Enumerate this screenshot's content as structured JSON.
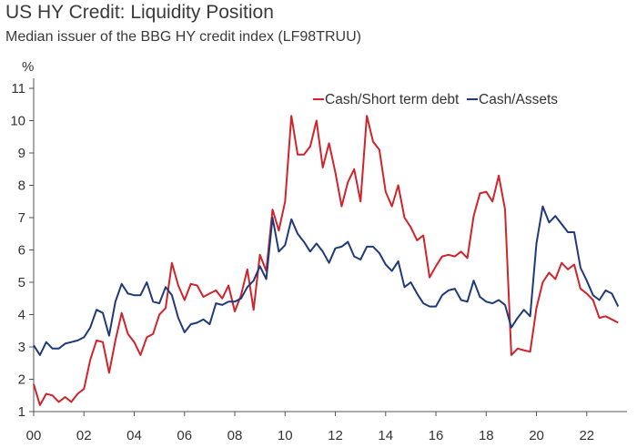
{
  "chart_data": {
    "type": "line",
    "title": "US HY Credit: Liquidity Position",
    "subtitle": "Median issuer of the BBG HY credit index (LF98TRUU)",
    "ylabel": "%",
    "xlabel": "",
    "xlim": [
      2000,
      2023.6
    ],
    "ylim": [
      1,
      11
    ],
    "xticks": [
      {
        "value": 2000,
        "label": "00"
      },
      {
        "value": 2002,
        "label": "02"
      },
      {
        "value": 2004,
        "label": "04"
      },
      {
        "value": 2006,
        "label": "06"
      },
      {
        "value": 2008,
        "label": "08"
      },
      {
        "value": 2010,
        "label": "10"
      },
      {
        "value": 2012,
        "label": "12"
      },
      {
        "value": 2014,
        "label": "14"
      },
      {
        "value": 2016,
        "label": "16"
      },
      {
        "value": 2018,
        "label": "18"
      },
      {
        "value": 2020,
        "label": "20"
      },
      {
        "value": 2022,
        "label": "22"
      }
    ],
    "yticks": [
      {
        "value": 1,
        "label": "1"
      },
      {
        "value": 2,
        "label": "2"
      },
      {
        "value": 3,
        "label": "3"
      },
      {
        "value": 4,
        "label": "4"
      },
      {
        "value": 5,
        "label": "5"
      },
      {
        "value": 6,
        "label": "6"
      },
      {
        "value": 7,
        "label": "7"
      },
      {
        "value": 8,
        "label": "8"
      },
      {
        "value": 9,
        "label": "9"
      },
      {
        "value": 10,
        "label": "10"
      },
      {
        "value": 11,
        "label": "11"
      }
    ],
    "grid": false,
    "legend_position": "top-right",
    "series": [
      {
        "name": "Cash/Short term debt",
        "color": "#d0232a",
        "points": [
          [
            2000.0,
            1.85
          ],
          [
            2000.25,
            1.2
          ],
          [
            2000.5,
            1.55
          ],
          [
            2000.75,
            1.5
          ],
          [
            2001.0,
            1.3
          ],
          [
            2001.25,
            1.45
          ],
          [
            2001.5,
            1.3
          ],
          [
            2001.75,
            1.55
          ],
          [
            2002.0,
            1.7
          ],
          [
            2002.25,
            2.6
          ],
          [
            2002.5,
            3.2
          ],
          [
            2002.75,
            3.15
          ],
          [
            2003.0,
            2.2
          ],
          [
            2003.25,
            3.2
          ],
          [
            2003.5,
            4.05
          ],
          [
            2003.75,
            3.4
          ],
          [
            2004.0,
            3.15
          ],
          [
            2004.25,
            2.75
          ],
          [
            2004.5,
            3.3
          ],
          [
            2004.75,
            3.4
          ],
          [
            2005.0,
            4.0
          ],
          [
            2005.25,
            4.2
          ],
          [
            2005.5,
            5.6
          ],
          [
            2005.75,
            4.9
          ],
          [
            2006.0,
            4.45
          ],
          [
            2006.25,
            4.95
          ],
          [
            2006.5,
            4.9
          ],
          [
            2006.75,
            4.55
          ],
          [
            2007.0,
            4.65
          ],
          [
            2007.25,
            4.75
          ],
          [
            2007.5,
            4.5
          ],
          [
            2007.75,
            4.9
          ],
          [
            2008.0,
            4.1
          ],
          [
            2008.25,
            4.6
          ],
          [
            2008.5,
            5.4
          ],
          [
            2008.75,
            4.15
          ],
          [
            2009.0,
            5.85
          ],
          [
            2009.25,
            5.35
          ],
          [
            2009.5,
            7.25
          ],
          [
            2009.75,
            6.6
          ],
          [
            2010.0,
            7.5
          ],
          [
            2010.25,
            10.15
          ],
          [
            2010.5,
            8.95
          ],
          [
            2010.75,
            8.95
          ],
          [
            2011.0,
            9.2
          ],
          [
            2011.25,
            10.0
          ],
          [
            2011.5,
            8.55
          ],
          [
            2011.75,
            9.3
          ],
          [
            2012.0,
            8.4
          ],
          [
            2012.25,
            7.35
          ],
          [
            2012.5,
            8.1
          ],
          [
            2012.75,
            8.5
          ],
          [
            2013.0,
            7.5
          ],
          [
            2013.25,
            10.15
          ],
          [
            2013.5,
            9.35
          ],
          [
            2013.75,
            9.1
          ],
          [
            2014.0,
            7.8
          ],
          [
            2014.25,
            7.35
          ],
          [
            2014.5,
            8.0
          ],
          [
            2014.75,
            7.0
          ],
          [
            2015.0,
            6.7
          ],
          [
            2015.25,
            6.3
          ],
          [
            2015.5,
            6.45
          ],
          [
            2015.75,
            5.15
          ],
          [
            2016.0,
            5.5
          ],
          [
            2016.25,
            5.8
          ],
          [
            2016.5,
            5.85
          ],
          [
            2016.75,
            5.8
          ],
          [
            2017.0,
            5.95
          ],
          [
            2017.25,
            5.75
          ],
          [
            2017.5,
            7.05
          ],
          [
            2017.75,
            7.75
          ],
          [
            2018.0,
            7.8
          ],
          [
            2018.25,
            7.5
          ],
          [
            2018.5,
            8.3
          ],
          [
            2018.75,
            7.25
          ],
          [
            2019.0,
            2.75
          ],
          [
            2019.25,
            2.95
          ],
          [
            2019.5,
            2.9
          ],
          [
            2019.75,
            2.85
          ],
          [
            2020.0,
            4.2
          ],
          [
            2020.25,
            5.0
          ],
          [
            2020.5,
            5.3
          ],
          [
            2020.75,
            5.1
          ],
          [
            2021.0,
            5.6
          ],
          [
            2021.25,
            5.4
          ],
          [
            2021.5,
            5.55
          ],
          [
            2021.75,
            4.8
          ],
          [
            2022.0,
            4.65
          ],
          [
            2022.25,
            4.45
          ],
          [
            2022.5,
            3.9
          ],
          [
            2022.75,
            3.95
          ],
          [
            2023.0,
            3.85
          ],
          [
            2023.25,
            3.75
          ]
        ]
      },
      {
        "name": "Cash/Assets",
        "color": "#1f3a7a",
        "points": [
          [
            2000.0,
            3.05
          ],
          [
            2000.25,
            2.75
          ],
          [
            2000.5,
            3.15
          ],
          [
            2000.75,
            2.95
          ],
          [
            2001.0,
            2.95
          ],
          [
            2001.25,
            3.1
          ],
          [
            2001.5,
            3.15
          ],
          [
            2001.75,
            3.2
          ],
          [
            2002.0,
            3.3
          ],
          [
            2002.25,
            3.6
          ],
          [
            2002.5,
            4.15
          ],
          [
            2002.75,
            4.05
          ],
          [
            2003.0,
            3.35
          ],
          [
            2003.25,
            4.4
          ],
          [
            2003.5,
            4.95
          ],
          [
            2003.75,
            4.65
          ],
          [
            2004.0,
            4.6
          ],
          [
            2004.25,
            4.6
          ],
          [
            2004.5,
            5.0
          ],
          [
            2004.75,
            4.4
          ],
          [
            2005.0,
            4.35
          ],
          [
            2005.25,
            4.85
          ],
          [
            2005.5,
            4.6
          ],
          [
            2005.75,
            3.9
          ],
          [
            2006.0,
            3.45
          ],
          [
            2006.25,
            3.7
          ],
          [
            2006.5,
            3.75
          ],
          [
            2006.75,
            3.85
          ],
          [
            2007.0,
            3.7
          ],
          [
            2007.25,
            4.35
          ],
          [
            2007.5,
            4.3
          ],
          [
            2007.75,
            4.4
          ],
          [
            2008.0,
            4.4
          ],
          [
            2008.25,
            4.5
          ],
          [
            2008.5,
            4.85
          ],
          [
            2008.75,
            5.05
          ],
          [
            2009.0,
            5.5
          ],
          [
            2009.25,
            5.1
          ],
          [
            2009.5,
            7.0
          ],
          [
            2009.75,
            5.95
          ],
          [
            2010.0,
            6.15
          ],
          [
            2010.25,
            6.95
          ],
          [
            2010.5,
            6.5
          ],
          [
            2010.75,
            6.25
          ],
          [
            2011.0,
            5.95
          ],
          [
            2011.25,
            6.2
          ],
          [
            2011.5,
            5.95
          ],
          [
            2011.75,
            5.6
          ],
          [
            2012.0,
            6.05
          ],
          [
            2012.25,
            6.1
          ],
          [
            2012.5,
            6.25
          ],
          [
            2012.75,
            5.8
          ],
          [
            2013.0,
            5.7
          ],
          [
            2013.25,
            6.1
          ],
          [
            2013.5,
            6.1
          ],
          [
            2013.75,
            5.9
          ],
          [
            2014.0,
            5.55
          ],
          [
            2014.25,
            5.35
          ],
          [
            2014.5,
            5.65
          ],
          [
            2014.75,
            4.85
          ],
          [
            2015.0,
            5.0
          ],
          [
            2015.25,
            4.65
          ],
          [
            2015.5,
            4.35
          ],
          [
            2015.75,
            4.25
          ],
          [
            2016.0,
            4.25
          ],
          [
            2016.25,
            4.6
          ],
          [
            2016.5,
            4.75
          ],
          [
            2016.75,
            4.8
          ],
          [
            2017.0,
            4.45
          ],
          [
            2017.25,
            4.4
          ],
          [
            2017.5,
            5.05
          ],
          [
            2017.75,
            4.55
          ],
          [
            2018.0,
            4.4
          ],
          [
            2018.25,
            4.35
          ],
          [
            2018.5,
            4.45
          ],
          [
            2018.75,
            4.3
          ],
          [
            2019.0,
            3.6
          ],
          [
            2019.25,
            3.9
          ],
          [
            2019.5,
            4.15
          ],
          [
            2019.75,
            3.95
          ],
          [
            2020.0,
            6.2
          ],
          [
            2020.25,
            7.35
          ],
          [
            2020.5,
            6.85
          ],
          [
            2020.75,
            7.05
          ],
          [
            2021.0,
            6.8
          ],
          [
            2021.25,
            6.55
          ],
          [
            2021.5,
            6.55
          ],
          [
            2021.75,
            5.45
          ],
          [
            2022.0,
            5.05
          ],
          [
            2022.25,
            4.6
          ],
          [
            2022.5,
            4.45
          ],
          [
            2022.75,
            4.75
          ],
          [
            2023.0,
            4.65
          ],
          [
            2023.25,
            4.25
          ]
        ]
      }
    ]
  }
}
